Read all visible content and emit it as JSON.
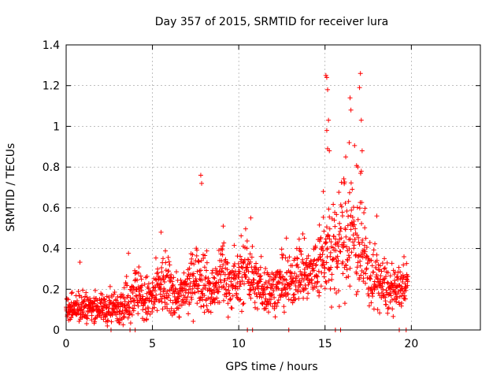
{
  "chart_data": {
    "type": "scatter",
    "title": "Day 357 of 2015, SRMTID for receiver lura",
    "xlabel": "GPS time / hours",
    "ylabel": "SRMTID / TECUs",
    "xlim": [
      0,
      24
    ],
    "ylim": [
      0,
      1.4
    ],
    "xticks": [
      0,
      5,
      10,
      15,
      20
    ],
    "yticks": [
      0,
      0.2,
      0.4,
      0.6,
      0.8,
      1,
      1.2,
      1.4
    ],
    "ytick_labels": [
      "0",
      "0.2",
      "0.4",
      "0.6",
      "0.8",
      "1",
      "1.2",
      "1.4"
    ],
    "grid": true,
    "marker": "+",
    "color": "#ff0000",
    "envelope": [
      [
        0.0,
        0.09,
        0.03
      ],
      [
        0.5,
        0.12,
        0.04
      ],
      [
        1.0,
        0.11,
        0.04
      ],
      [
        1.5,
        0.11,
        0.03
      ],
      [
        2.0,
        0.11,
        0.03
      ],
      [
        2.5,
        0.1,
        0.04
      ],
      [
        3.0,
        0.12,
        0.04
      ],
      [
        3.5,
        0.13,
        0.05
      ],
      [
        4.0,
        0.2,
        0.06
      ],
      [
        4.5,
        0.14,
        0.06
      ],
      [
        5.0,
        0.15,
        0.06
      ],
      [
        5.5,
        0.22,
        0.07
      ],
      [
        6.0,
        0.2,
        0.07
      ],
      [
        6.5,
        0.16,
        0.05
      ],
      [
        7.0,
        0.19,
        0.06
      ],
      [
        7.5,
        0.28,
        0.07
      ],
      [
        8.0,
        0.25,
        0.08
      ],
      [
        8.5,
        0.17,
        0.05
      ],
      [
        9.0,
        0.3,
        0.09
      ],
      [
        9.5,
        0.22,
        0.06
      ],
      [
        10.0,
        0.24,
        0.06
      ],
      [
        10.5,
        0.32,
        0.09
      ],
      [
        11.0,
        0.22,
        0.06
      ],
      [
        11.5,
        0.2,
        0.06
      ],
      [
        12.0,
        0.2,
        0.05
      ],
      [
        12.5,
        0.22,
        0.06
      ],
      [
        13.0,
        0.23,
        0.06
      ],
      [
        13.5,
        0.3,
        0.08
      ],
      [
        14.0,
        0.26,
        0.07
      ],
      [
        14.5,
        0.3,
        0.08
      ],
      [
        15.0,
        0.38,
        0.1
      ],
      [
        15.5,
        0.35,
        0.12
      ],
      [
        16.0,
        0.45,
        0.14
      ],
      [
        16.5,
        0.5,
        0.15
      ],
      [
        17.0,
        0.4,
        0.13
      ],
      [
        17.5,
        0.28,
        0.08
      ],
      [
        18.0,
        0.25,
        0.07
      ],
      [
        18.5,
        0.2,
        0.06
      ],
      [
        19.0,
        0.18,
        0.05
      ],
      [
        19.5,
        0.22,
        0.06
      ],
      [
        19.8,
        0.26,
        0.05
      ]
    ],
    "peaks": [
      [
        7.8,
        0.76
      ],
      [
        7.85,
        0.72
      ],
      [
        9.1,
        0.51
      ],
      [
        10.7,
        0.55
      ],
      [
        14.9,
        0.68
      ],
      [
        15.05,
        1.25
      ],
      [
        15.1,
        1.24
      ],
      [
        15.15,
        1.18
      ],
      [
        15.2,
        1.03
      ],
      [
        15.1,
        0.98
      ],
      [
        15.15,
        0.89
      ],
      [
        15.25,
        0.88
      ],
      [
        16.2,
        0.85
      ],
      [
        16.45,
        1.14
      ],
      [
        16.5,
        1.08
      ],
      [
        16.4,
        0.92
      ],
      [
        16.9,
        0.8
      ],
      [
        17.05,
        1.26
      ],
      [
        17.0,
        1.19
      ],
      [
        17.1,
        1.03
      ],
      [
        17.15,
        0.88
      ],
      [
        17.1,
        0.78
      ],
      [
        5.5,
        0.48
      ],
      [
        18.0,
        0.56
      ],
      [
        13.8,
        0.45
      ],
      [
        12.5,
        0.37
      ]
    ],
    "zero_points": [
      2.6,
      3.7,
      4.0,
      10.5,
      10.8,
      12.9,
      15.6,
      15.9,
      19.3,
      19.7
    ]
  }
}
